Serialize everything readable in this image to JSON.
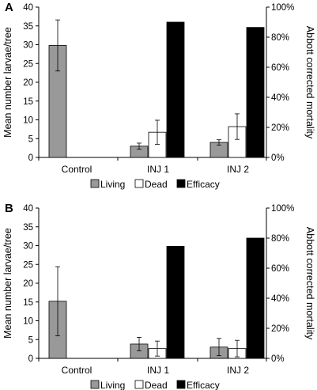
{
  "chart_data": [
    {
      "panel_label": "A",
      "type": "bar",
      "categories": [
        "Control",
        "INJ 1",
        "INJ 2"
      ],
      "ylabel": "Mean number larvae/tree",
      "y2label": "Abbott corrected mortality",
      "ylim": [
        0,
        40
      ],
      "y2lim": [
        0,
        100
      ],
      "yticks": [
        "0",
        "5",
        "10",
        "15",
        "20",
        "25",
        "30",
        "35",
        "40"
      ],
      "y2ticks": [
        "0%",
        "20%",
        "40%",
        "60%",
        "80%",
        "100%"
      ],
      "grid": false,
      "legend_placement": "bottom",
      "series": [
        {
          "name": "Living",
          "axis": "left",
          "color": "#999999",
          "values": [
            29.8,
            3.0,
            4.0
          ],
          "err": [
            6.8,
            0.8,
            0.7
          ]
        },
        {
          "name": "Dead",
          "axis": "left",
          "color": "#ffffff",
          "values": [
            0,
            6.7,
            8.2
          ],
          "err": [
            0,
            3.2,
            3.4
          ]
        },
        {
          "name": "Efficacy",
          "axis": "right",
          "color": "#000000",
          "values": [
            null,
            90,
            86.5
          ],
          "err": [
            null,
            null,
            null
          ]
        }
      ]
    },
    {
      "panel_label": "B",
      "type": "bar",
      "categories": [
        "Control",
        "INJ 1",
        "INJ 2"
      ],
      "ylabel": "Mean number larvae/tree",
      "y2label": "Abbott corrected mortality",
      "ylim": [
        0,
        40
      ],
      "y2lim": [
        0,
        100
      ],
      "yticks": [
        "0",
        "5",
        "10",
        "15",
        "20",
        "25",
        "30",
        "35",
        "40"
      ],
      "y2ticks": [
        "0%",
        "20%",
        "40%",
        "60%",
        "80%",
        "100%"
      ],
      "grid": false,
      "legend_placement": "bottom",
      "series": [
        {
          "name": "Living",
          "axis": "left",
          "color": "#999999",
          "values": [
            15.2,
            3.8,
            3.0
          ],
          "err": [
            9.2,
            1.8,
            2.3
          ]
        },
        {
          "name": "Dead",
          "axis": "left",
          "color": "#ffffff",
          "values": [
            0,
            2.6,
            2.6
          ],
          "err": [
            0,
            2.0,
            2.2
          ]
        },
        {
          "name": "Efficacy",
          "axis": "right",
          "color": "#000000",
          "values": [
            null,
            74.5,
            80
          ],
          "err": [
            null,
            null,
            null
          ]
        }
      ]
    }
  ]
}
